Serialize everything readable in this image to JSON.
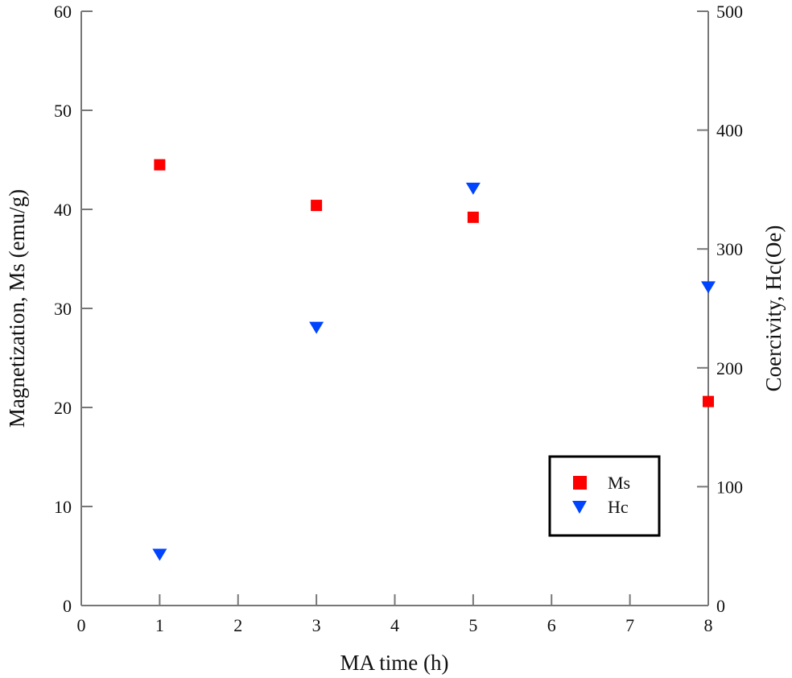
{
  "chart_data": {
    "type": "scatter",
    "title": "",
    "xlabel": "MA time (h)",
    "ylabel": "Magnetization, Ms (emu/g)",
    "y2label": "Coercivity, Hc(Oe)",
    "xlim": [
      0,
      8
    ],
    "ylim": [
      0,
      60
    ],
    "y2lim": [
      0,
      500
    ],
    "xticks": [
      0,
      1,
      2,
      3,
      4,
      5,
      6,
      7,
      8
    ],
    "yticks": [
      0,
      10,
      20,
      30,
      40,
      50,
      60
    ],
    "y2ticks": [
      0,
      100,
      200,
      300,
      400,
      500
    ],
    "grid": false,
    "legend_position": "lower-right",
    "series": [
      {
        "name": "Ms",
        "axis": "left",
        "marker": "square",
        "color": "#ff0000",
        "x": [
          1,
          3,
          5,
          8
        ],
        "y": [
          44.5,
          40.4,
          39.2,
          20.6
        ]
      },
      {
        "name": "Hc",
        "axis": "right",
        "marker": "triangle-down",
        "color": "#0044ff",
        "x": [
          1,
          3,
          5,
          8
        ],
        "y": [
          43,
          234,
          351,
          268
        ]
      }
    ]
  }
}
